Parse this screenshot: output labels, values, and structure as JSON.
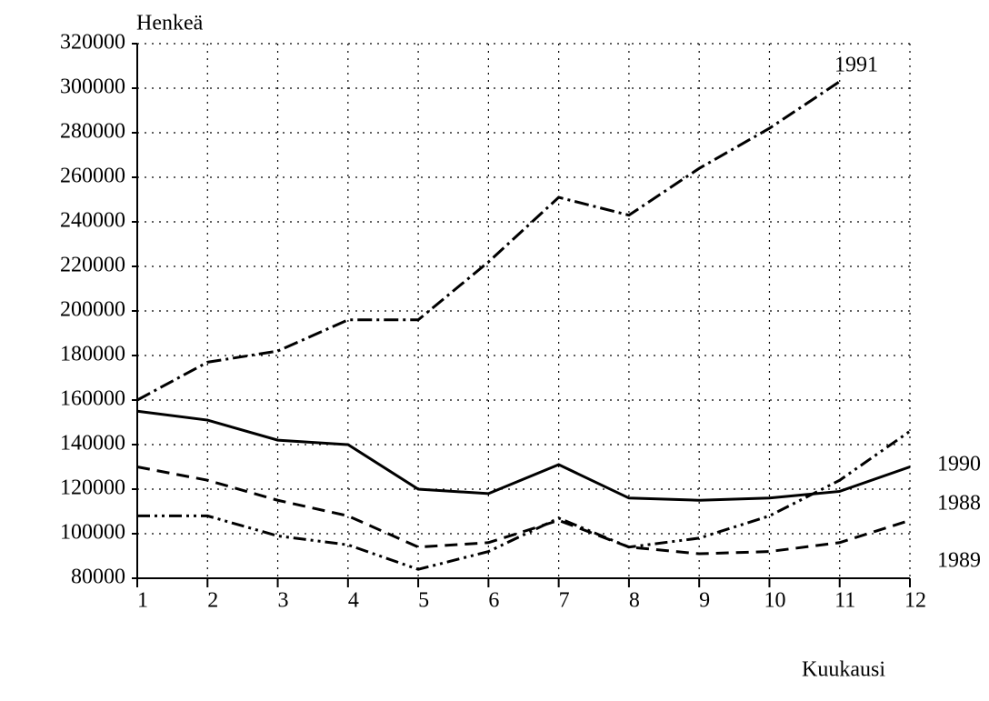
{
  "chart_data": {
    "type": "line",
    "y_label": "Henkeä",
    "x_label": "Kuukausi",
    "x": [
      1,
      2,
      3,
      4,
      5,
      6,
      7,
      8,
      9,
      10,
      11,
      12
    ],
    "xlim": [
      1,
      12
    ],
    "xticks": [
      1,
      2,
      3,
      4,
      5,
      6,
      7,
      8,
      9,
      10,
      11,
      12
    ],
    "ylim": [
      80000,
      320000
    ],
    "yticks": [
      80000,
      100000,
      120000,
      140000,
      160000,
      180000,
      200000,
      220000,
      240000,
      260000,
      280000,
      300000,
      320000
    ],
    "grid": true,
    "series": [
      {
        "name": "1988",
        "color": "#000000",
        "values": [
          155000,
          151000,
          142000,
          140000,
          120000,
          118000,
          131000,
          116000,
          115000,
          116000,
          119000,
          130000
        ]
      },
      {
        "name": "1989",
        "color": "#000000",
        "values": [
          130000,
          124000,
          115000,
          108000,
          94000,
          96000,
          106000,
          94000,
          91000,
          92000,
          96000,
          106000
        ]
      },
      {
        "name": "1990",
        "color": "#000000",
        "values": [
          108000,
          108000,
          99000,
          95000,
          84000,
          92000,
          107000,
          94000,
          98000,
          108000,
          124000,
          146000
        ]
      },
      {
        "name": "1991",
        "color": "#000000",
        "values": [
          160000,
          177000,
          182000,
          196000,
          196000,
          222000,
          251000,
          243000,
          264000,
          282000,
          303000,
          null
        ]
      }
    ]
  }
}
